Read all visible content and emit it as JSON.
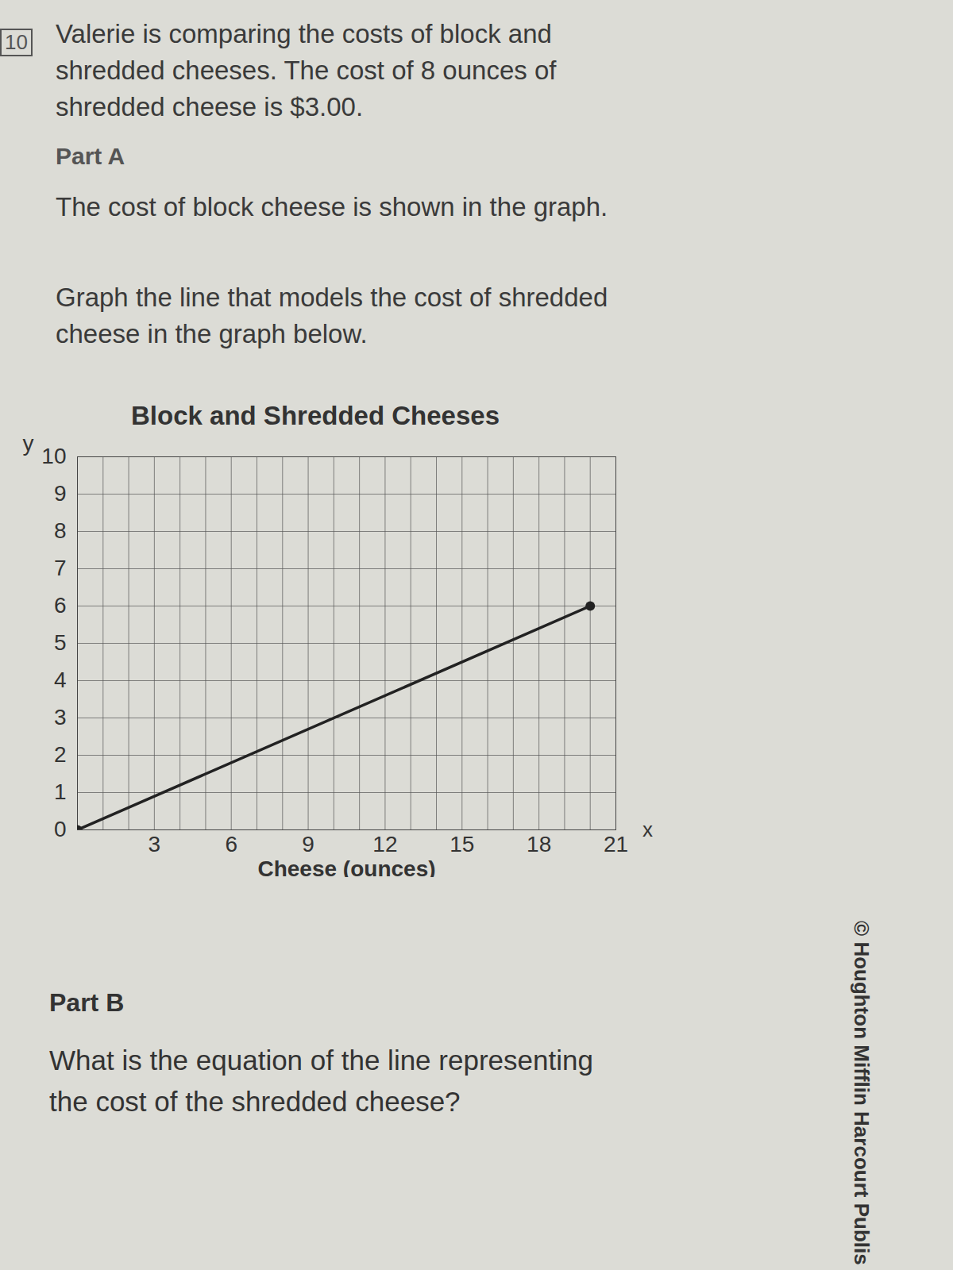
{
  "problem": {
    "number": "10",
    "intro": "Valerie is comparing the costs of block and shredded cheeses. The cost of 8 ounces of shredded cheese is $3.00.",
    "part_a": {
      "heading": "Part A",
      "text": "The cost of block cheese is shown in the graph.",
      "instruction": "Graph the line that models the cost of shredded cheese in the graph below."
    },
    "part_b": {
      "heading": "Part B",
      "question": "What is the equation of the line representing the cost of the shredded cheese?"
    },
    "footer": "© Houghton Mifflin Harcourt Publis"
  },
  "chart_data": {
    "type": "line",
    "title": "Block and Shredded Cheeses",
    "xlabel": "Cheese (ounces)",
    "ylabel": "y",
    "annotations": [
      "x"
    ],
    "x": [
      0,
      20
    ],
    "series": [
      {
        "name": "Block cheese",
        "color": "#222222",
        "values": [
          0,
          6
        ],
        "marker": "circle",
        "line_style": "solid"
      }
    ],
    "xlim": [
      0,
      21
    ],
    "xticks": [
      3,
      6,
      9,
      12,
      15,
      18,
      21
    ],
    "ylim": [
      0,
      10
    ],
    "yticks": [
      0,
      1,
      2,
      3,
      4,
      5,
      6,
      7,
      8,
      9,
      10
    ],
    "grid": true
  }
}
